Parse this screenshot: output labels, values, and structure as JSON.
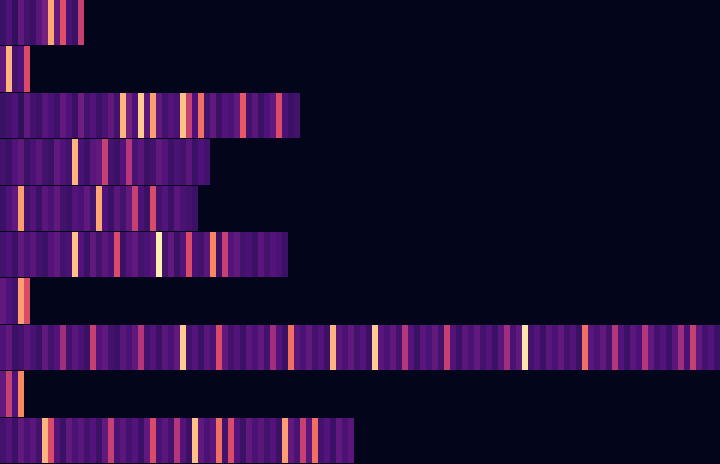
{
  "chart_data": {
    "type": "heatmap",
    "cells": [
      [
        0.2,
        0.25,
        0.18,
        0.3,
        0.22,
        0.2,
        0.28,
        0.35,
        0.82,
        0.3,
        0.62,
        0.24,
        0.2,
        0.55
      ],
      [
        0.3,
        0.85,
        0.22,
        0.25,
        0.6
      ],
      [
        0.2,
        0.22,
        0.25,
        0.18,
        0.3,
        0.22,
        0.2,
        0.27,
        0.24,
        0.21,
        0.3,
        0.25,
        0.2,
        0.33,
        0.22,
        0.26,
        0.2,
        0.24,
        0.3,
        0.22,
        0.85,
        0.35,
        0.25,
        0.9,
        0.28,
        0.8,
        0.3,
        0.22,
        0.26,
        0.24,
        0.88,
        0.55,
        0.25,
        0.7,
        0.22,
        0.3,
        0.2,
        0.26,
        0.24,
        0.3,
        0.65,
        0.22,
        0.28,
        0.2,
        0.25,
        0.3,
        0.6,
        0.24,
        0.2,
        0.22
      ],
      [
        0.22,
        0.2,
        0.26,
        0.3,
        0.2,
        0.24,
        0.28,
        0.22,
        0.2,
        0.3,
        0.25,
        0.22,
        0.85,
        0.24,
        0.2,
        0.28,
        0.3,
        0.55,
        0.22,
        0.2,
        0.26,
        0.5,
        0.24,
        0.28,
        0.2,
        0.22,
        0.3,
        0.26,
        0.2,
        0.24,
        0.22,
        0.28,
        0.2,
        0.25,
        0.22
      ],
      [
        0.2,
        0.25,
        0.3,
        0.8,
        0.22,
        0.26,
        0.2,
        0.28,
        0.24,
        0.3,
        0.22,
        0.2,
        0.26,
        0.24,
        0.3,
        0.22,
        0.82,
        0.25,
        0.2,
        0.28,
        0.22,
        0.3,
        0.55,
        0.24,
        0.2,
        0.6,
        0.22,
        0.26,
        0.2,
        0.28,
        0.24,
        0.22,
        0.2
      ],
      [
        0.22,
        0.25,
        0.2,
        0.3,
        0.24,
        0.28,
        0.22,
        0.2,
        0.26,
        0.3,
        0.22,
        0.24,
        0.88,
        0.26,
        0.2,
        0.3,
        0.22,
        0.28,
        0.24,
        0.6,
        0.2,
        0.26,
        0.3,
        0.22,
        0.24,
        0.28,
        0.97,
        0.22,
        0.3,
        0.2,
        0.26,
        0.6,
        0.24,
        0.22,
        0.28,
        0.75,
        0.2,
        0.55,
        0.26,
        0.3,
        0.22,
        0.24,
        0.2,
        0.28,
        0.22,
        0.26,
        0.24,
        0.2
      ],
      [
        0.3,
        0.25,
        0.22,
        0.8,
        0.6
      ],
      [
        0.25,
        0.3,
        0.2,
        0.22,
        0.28,
        0.24,
        0.2,
        0.3,
        0.22,
        0.26,
        0.45,
        0.22,
        0.28,
        0.24,
        0.2,
        0.55,
        0.26,
        0.3,
        0.22,
        0.2,
        0.28,
        0.24,
        0.3,
        0.5,
        0.22,
        0.26,
        0.2,
        0.28,
        0.24,
        0.3,
        0.9,
        0.22,
        0.26,
        0.2,
        0.28,
        0.24,
        0.6,
        0.3,
        0.22,
        0.26,
        0.2,
        0.28,
        0.24,
        0.3,
        0.22,
        0.45,
        0.26,
        0.2,
        0.7,
        0.28,
        0.24,
        0.3,
        0.22,
        0.26,
        0.2,
        0.85,
        0.28,
        0.24,
        0.3,
        0.22,
        0.26,
        0.2,
        0.9,
        0.28,
        0.24,
        0.3,
        0.22,
        0.5,
        0.26,
        0.2,
        0.28,
        0.24,
        0.3,
        0.22,
        0.55,
        0.26,
        0.2,
        0.28,
        0.24,
        0.3,
        0.22,
        0.26,
        0.2,
        0.28,
        0.45,
        0.24,
        0.3,
        0.95,
        0.22,
        0.26,
        0.2,
        0.28,
        0.24,
        0.3,
        0.22,
        0.26,
        0.2,
        0.7,
        0.28,
        0.24,
        0.3,
        0.22,
        0.5,
        0.26,
        0.2,
        0.28,
        0.24,
        0.5,
        0.3,
        0.22,
        0.26,
        0.2,
        0.28,
        0.45,
        0.24,
        0.55,
        0.3,
        0.22,
        0.26,
        0.2
      ],
      [
        0.3,
        0.55,
        0.25,
        0.75
      ],
      [
        0.22,
        0.26,
        0.2,
        0.3,
        0.24,
        0.28,
        0.22,
        0.85,
        0.6,
        0.26,
        0.2,
        0.3,
        0.24,
        0.28,
        0.22,
        0.26,
        0.2,
        0.3,
        0.55,
        0.24,
        0.28,
        0.22,
        0.26,
        0.2,
        0.3,
        0.6,
        0.24,
        0.28,
        0.22,
        0.5,
        0.26,
        0.2,
        0.88,
        0.3,
        0.24,
        0.28,
        0.7,
        0.22,
        0.6,
        0.26,
        0.2,
        0.3,
        0.24,
        0.28,
        0.22,
        0.26,
        0.2,
        0.8,
        0.3,
        0.24,
        0.55,
        0.28,
        0.7,
        0.22,
        0.26,
        0.2,
        0.3,
        0.24,
        0.28
      ]
    ],
    "zlim": [
      0,
      1
    ],
    "xlim": [
      0,
      120
    ],
    "ylim": [
      10,
      0
    ],
    "grid": false,
    "tick_labels": false
  }
}
